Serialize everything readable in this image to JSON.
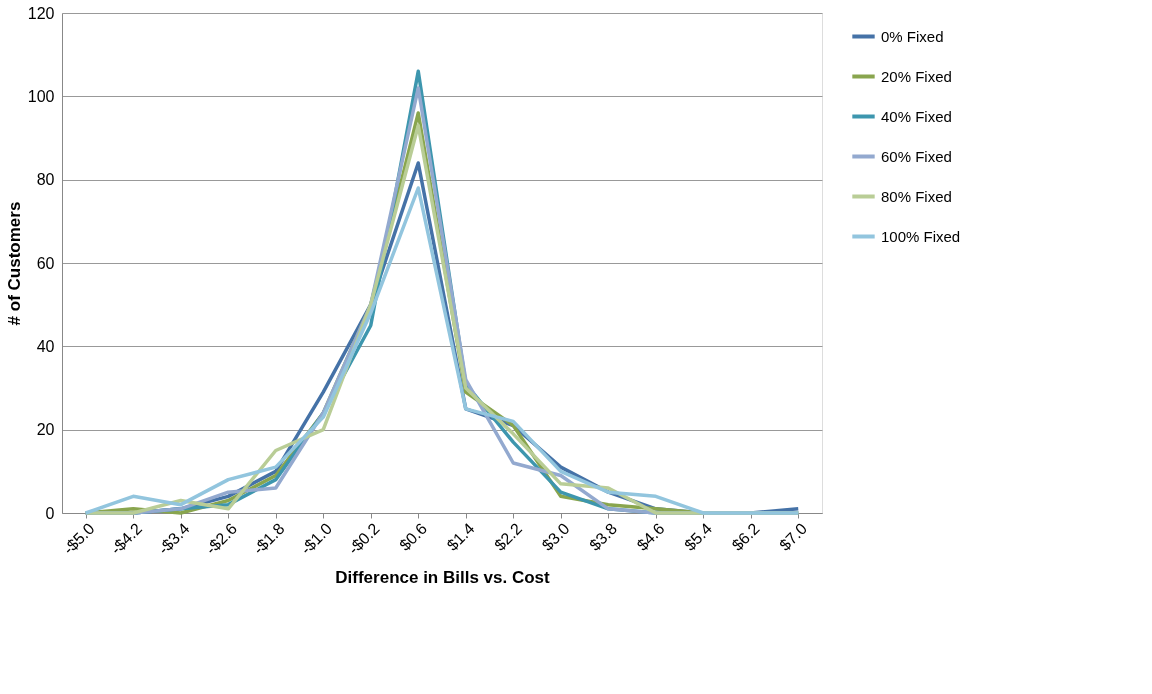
{
  "chart_data": {
    "type": "line",
    "xlabel": "Difference in Bills vs. Cost",
    "ylabel": "# of Customers",
    "categories": [
      "-$5.0",
      "-$4.2",
      "-$3.4",
      "-$2.6",
      "-$1.8",
      "-$1.0",
      "-$0.2",
      "$0.6",
      "$1.4",
      "$2.2",
      "$3.0",
      "$3.8",
      "$4.6",
      "$5.4",
      "$6.2",
      "$7.0"
    ],
    "series": [
      {
        "name": "0% Fixed",
        "color": "#4572a7",
        "values": [
          0,
          0,
          1,
          4,
          10,
          29,
          50,
          84,
          25,
          21,
          11,
          5,
          1,
          0,
          0,
          1
        ]
      },
      {
        "name": "20% Fixed",
        "color": "#89a54e",
        "values": [
          0,
          1,
          0,
          3,
          9,
          24,
          50,
          96,
          29,
          21,
          4,
          2,
          1,
          0,
          0,
          0
        ]
      },
      {
        "name": "40% Fixed",
        "color": "#3d96ae",
        "values": [
          0,
          0,
          1,
          2,
          8,
          24,
          45,
          106,
          31,
          17,
          5,
          1,
          0,
          0,
          0,
          0
        ]
      },
      {
        "name": "60% Fixed",
        "color": "#93a9cf",
        "values": [
          0,
          0,
          1,
          5,
          6,
          24,
          50,
          102,
          32,
          12,
          9,
          1,
          0,
          0,
          0,
          0
        ]
      },
      {
        "name": "80% Fixed",
        "color": "#b9cd96",
        "values": [
          0,
          0,
          3,
          1,
          15,
          20,
          50,
          93,
          30,
          19,
          7,
          6,
          0,
          0,
          0,
          0
        ]
      },
      {
        "name": "100% Fixed",
        "color": "#92c5de",
        "values": [
          0,
          4,
          2,
          8,
          11,
          23,
          48,
          78,
          25,
          22,
          10,
          5,
          4,
          0,
          0,
          0
        ]
      }
    ],
    "ylim": [
      0,
      120
    ],
    "yticks": [
      0,
      20,
      40,
      60,
      80,
      100,
      120
    ],
    "grid": "y",
    "legend": "right",
    "line_style": "solid",
    "marker": "none"
  }
}
